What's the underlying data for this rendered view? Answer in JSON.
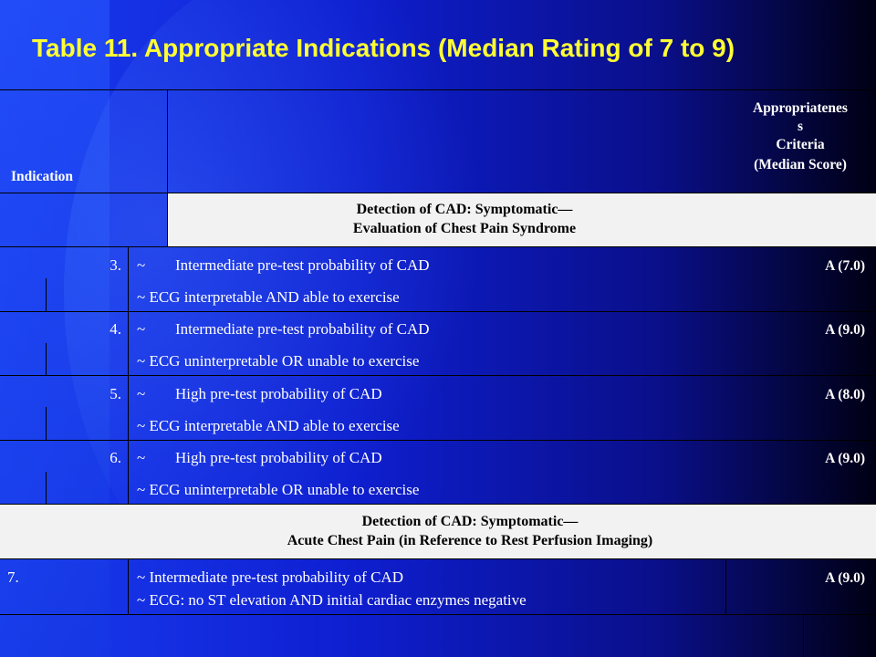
{
  "title": "Table 11. Appropriate Indications (Median Rating of 7 to 9)",
  "header": {
    "indication": "Indication",
    "criteria_line1": "Appropriatenes",
    "criteria_line2": "s",
    "criteria_line3": "Criteria",
    "criteria_line4": "(Median Score)"
  },
  "section1": {
    "line1": "Detection of CAD: Symptomatic—",
    "line2": "Evaluation of Chest Pain Syndrome"
  },
  "rows": [
    {
      "num": "3.",
      "line1_mark": "~",
      "line1": "Intermediate pre-test probability of CAD",
      "line2": "~ ECG interpretable AND able to exercise",
      "score": "A (7.0)"
    },
    {
      "num": "4.",
      "line1_mark": "~",
      "line1": "Intermediate pre-test probability of CAD",
      "line2": "~ ECG uninterpretable OR unable to exercise",
      "score": "A (9.0)"
    },
    {
      "num": "5.",
      "line1_mark": "~",
      "line1": "High pre-test probability of CAD",
      "line2": "~ ECG interpretable AND able to exercise",
      "score": "A (8.0)"
    },
    {
      "num": "6.",
      "line1_mark": "~",
      "line1": "High pre-test probability of CAD",
      "line2": "~ ECG uninterpretable OR unable to exercise",
      "score": "A (9.0)"
    }
  ],
  "section2": {
    "line1": "Detection of CAD: Symptomatic—",
    "line2": "Acute Chest Pain (in Reference to Rest Perfusion Imaging)"
  },
  "row7": {
    "num": "7.",
    "line1": "~ Intermediate pre-test probability of CAD",
    "line2": "~ ECG: no ST elevation AND initial cardiac enzymes negative",
    "score": "A (9.0)"
  }
}
